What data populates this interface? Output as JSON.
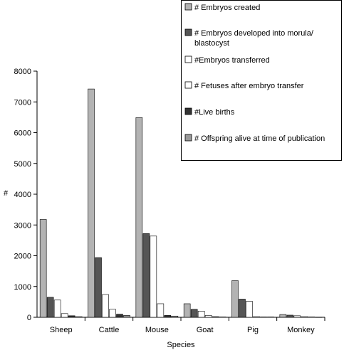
{
  "chart_data": {
    "type": "bar",
    "xlabel": "Species",
    "ylabel": "#",
    "ylim": [
      0,
      8000
    ],
    "yticks": [
      0,
      1000,
      2000,
      3000,
      4000,
      5000,
      6000,
      7000,
      8000
    ],
    "categories": [
      "Sheep",
      "Cattle",
      "Mouse",
      "Goat",
      "Pig",
      "Monkey"
    ],
    "legend_position": "top-right",
    "series": [
      {
        "name": "# Embryos created",
        "color": "#b3b3b3",
        "values": [
          3180,
          7420,
          6490,
          440,
          1190,
          90
        ]
      },
      {
        "name": "# Embryos developed into morula/ blastocyst",
        "color": "#555555",
        "values": [
          650,
          1940,
          2720,
          260,
          590,
          70
        ]
      },
      {
        "name": "#Embryos transferred",
        "color": "#ffffff",
        "values": [
          560,
          740,
          2640,
          200,
          520,
          50
        ]
      },
      {
        "name": "# Fetuses after embryo transfer",
        "color": "#ffffff",
        "values": [
          120,
          260,
          440,
          60,
          20,
          20
        ]
      },
      {
        "name": "#Live births",
        "color": "#333333",
        "values": [
          50,
          100,
          60,
          20,
          10,
          10
        ]
      },
      {
        "name": "# Offspring alive at time of publication",
        "color": "#999999",
        "values": [
          20,
          60,
          40,
          10,
          10,
          5
        ]
      }
    ]
  }
}
